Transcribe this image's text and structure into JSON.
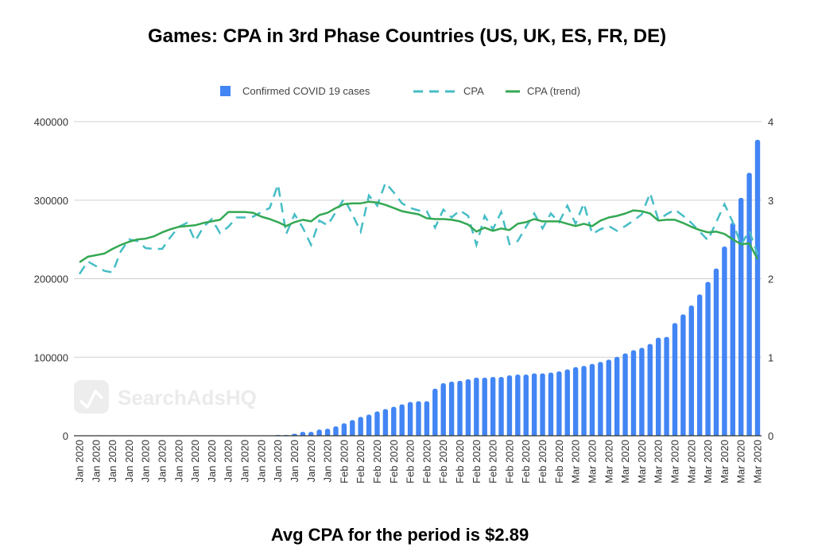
{
  "chart_data": {
    "type": "bar+line",
    "title": "Games: CPA in 3rd Phase Countries (US, UK, ES, FR, DE)",
    "footer": "Avg CPA for the period is $2.89",
    "watermark": "SearchAdsHQ",
    "legend_position": "top",
    "grid": true,
    "left_axis": {
      "ylim": [
        0,
        400000
      ],
      "ticks": [
        "0",
        "100000",
        "200000",
        "300000",
        "400000"
      ]
    },
    "right_axis": {
      "ylim": [
        0,
        4
      ],
      "ticks": [
        "0",
        "1",
        "2",
        "3",
        "4"
      ]
    },
    "x_tick_labels": [
      "Jan 2020",
      "Jan 2020",
      "Jan 2020",
      "Jan 2020",
      "Jan 2020",
      "Jan 2020",
      "Jan 2020",
      "Jan 2020",
      "Jan 2020",
      "Jan 2020",
      "Jan 2020",
      "Jan 2020",
      "Jan 2020",
      "Jan 2020",
      "Jan 2020",
      "Jan 2020",
      "Feb 2020",
      "Feb 2020",
      "Feb 2020",
      "Feb 2020",
      "Feb 2020",
      "Feb 2020",
      "Feb 2020",
      "Feb 2020",
      "Feb 2020",
      "Feb 2020",
      "Feb 2020",
      "Feb 2020",
      "Feb 2020",
      "Feb 2020",
      "Mar 2020",
      "Mar 2020",
      "Mar 2020",
      "Mar 2020",
      "Mar 2020",
      "Mar 2020",
      "Mar 2020",
      "Mar 2020",
      "Mar 2020",
      "Mar 2020",
      "Mar 2020",
      "Mar 2020"
    ],
    "series": [
      {
        "name": "Confirmed COVID 19 cases",
        "type": "bar",
        "axis": "left",
        "color": "#4285F4",
        "values": [
          0,
          0,
          0,
          0,
          0,
          0,
          0,
          0,
          0,
          0,
          0,
          0,
          0,
          0,
          0,
          0,
          0,
          0,
          0,
          0,
          0,
          0,
          0,
          0,
          1000,
          1000,
          2500,
          5000,
          5000,
          8000,
          9000,
          12000,
          16000,
          20000,
          24000,
          27000,
          31000,
          34000,
          37000,
          40000,
          43000,
          44000,
          44000,
          60000,
          67000,
          69000,
          70000,
          72000,
          74000,
          74000,
          75000,
          75000,
          77000,
          78000,
          78000,
          79500,
          79500,
          80500,
          82000,
          84500,
          87500,
          89000,
          91500,
          94000,
          97000,
          100500,
          105000,
          109000,
          112000,
          117000,
          125000,
          126000,
          143500,
          154500,
          166000,
          180000,
          196000,
          213000,
          241000,
          271000,
          303000,
          335000,
          377000
        ]
      },
      {
        "name": "CPA",
        "type": "line",
        "style": "dashed",
        "axis": "right",
        "color": "#46BDC6",
        "values": [
          2.06,
          2.22,
          2.16,
          2.1,
          2.08,
          2.35,
          2.5,
          2.48,
          2.39,
          2.38,
          2.38,
          2.53,
          2.66,
          2.71,
          2.48,
          2.66,
          2.76,
          2.58,
          2.66,
          2.78,
          2.78,
          2.79,
          2.85,
          2.9,
          3.2,
          2.57,
          2.82,
          2.65,
          2.43,
          2.74,
          2.68,
          2.85,
          3.02,
          2.82,
          2.6,
          3.06,
          2.93,
          3.22,
          3.1,
          2.96,
          2.9,
          2.87,
          2.86,
          2.65,
          2.88,
          2.78,
          2.87,
          2.8,
          2.43,
          2.8,
          2.63,
          2.85,
          2.44,
          2.48,
          2.66,
          2.83,
          2.64,
          2.83,
          2.72,
          2.93,
          2.7,
          2.96,
          2.57,
          2.63,
          2.67,
          2.61,
          2.67,
          2.74,
          2.82,
          3.09,
          2.75,
          2.82,
          2.88,
          2.8,
          2.71,
          2.6,
          2.49,
          2.72,
          2.95,
          2.72,
          2.43,
          2.61,
          2.31
        ]
      },
      {
        "name": "CPA (trend)",
        "type": "line",
        "style": "solid",
        "axis": "right",
        "color": "#34A853",
        "values": [
          2.21,
          2.28,
          2.3,
          2.32,
          2.38,
          2.43,
          2.47,
          2.5,
          2.51,
          2.54,
          2.59,
          2.63,
          2.66,
          2.67,
          2.68,
          2.71,
          2.73,
          2.75,
          2.85,
          2.85,
          2.85,
          2.84,
          2.79,
          2.76,
          2.72,
          2.67,
          2.72,
          2.75,
          2.73,
          2.81,
          2.84,
          2.9,
          2.95,
          2.96,
          2.96,
          2.98,
          2.97,
          2.94,
          2.9,
          2.86,
          2.84,
          2.82,
          2.77,
          2.76,
          2.76,
          2.75,
          2.73,
          2.69,
          2.6,
          2.65,
          2.61,
          2.64,
          2.62,
          2.7,
          2.72,
          2.76,
          2.73,
          2.73,
          2.73,
          2.7,
          2.67,
          2.7,
          2.67,
          2.74,
          2.78,
          2.8,
          2.83,
          2.87,
          2.86,
          2.83,
          2.74,
          2.75,
          2.75,
          2.71,
          2.66,
          2.62,
          2.59,
          2.6,
          2.57,
          2.5,
          2.44,
          2.45,
          2.25
        ]
      }
    ]
  }
}
